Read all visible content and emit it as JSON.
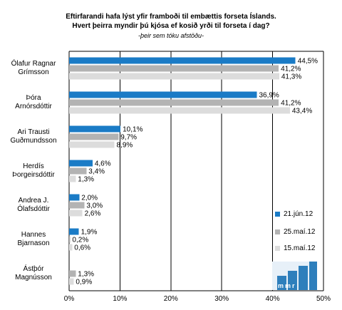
{
  "chart_data": {
    "type": "bar",
    "orientation": "horizontal",
    "title_line1": "Eftirfarandi hafa lýst yfir framboði til embættis forseta Íslands.",
    "title_line2": "Hvert þeirra myndir þú kjósa ef kosið yrði til forseta í dag?",
    "subtitle": "-þeir sem tóku afstöðu-",
    "categories": [
      [
        "Ólafur Ragnar",
        "Grímsson"
      ],
      [
        "Þóra",
        "Arnórsdóttir"
      ],
      [
        "Ari Trausti",
        "Guðmundsson"
      ],
      [
        "Herdís",
        "Þorgeirsdóttir"
      ],
      [
        "Andrea J.",
        "Ólafsdóttir"
      ],
      [
        "Hannes",
        "Bjarnason"
      ],
      [
        "Ástþór",
        "Magnússon"
      ]
    ],
    "series": [
      {
        "name": "21.jún.12",
        "color": "#1a7bc6",
        "values": [
          44.5,
          36.9,
          10.1,
          4.6,
          2.0,
          1.9,
          null
        ],
        "labels": [
          "44,5%",
          "36,9%",
          "10,1%",
          "4,6%",
          "2,0%",
          "1,9%",
          ""
        ]
      },
      {
        "name": "25.maí.12",
        "color": "#b3b3b3",
        "values": [
          41.2,
          41.2,
          9.7,
          3.4,
          3.0,
          0.2,
          1.3
        ],
        "labels": [
          "41,2%",
          "41,2%",
          "9,7%",
          "3,4%",
          "3,0%",
          "0,2%",
          "1,3%"
        ]
      },
      {
        "name": "15.maí.12",
        "color": "#dcdcdc",
        "values": [
          41.3,
          43.4,
          8.9,
          1.3,
          2.6,
          0.6,
          0.9
        ],
        "labels": [
          "41,3%",
          "43,4%",
          "8,9%",
          "1,3%",
          "2,6%",
          "0,6%",
          "0,9%"
        ]
      }
    ],
    "xlim": [
      0,
      50
    ],
    "xticks": [
      0,
      10,
      20,
      30,
      40,
      50
    ],
    "xtick_labels": [
      "0%",
      "10%",
      "20%",
      "30%",
      "40%",
      "50%"
    ],
    "grid": true,
    "legend_position": "right"
  },
  "logo": {
    "text": "mmr"
  }
}
